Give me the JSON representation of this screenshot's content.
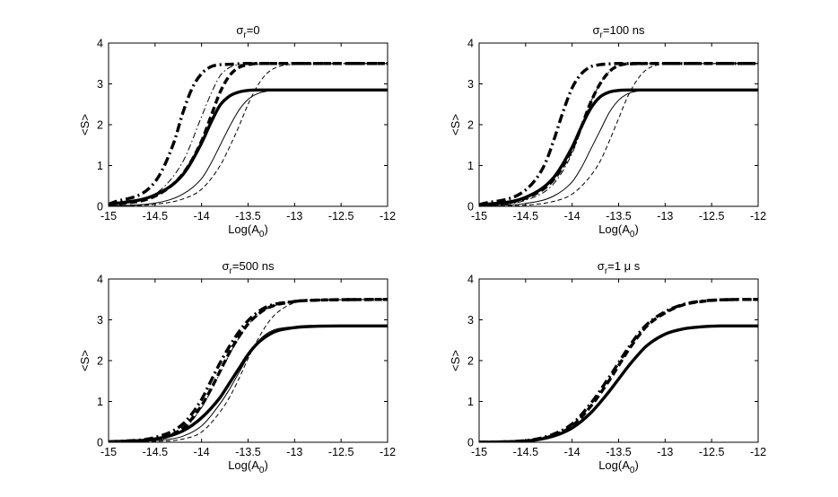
{
  "colors": {
    "axis": "#000000",
    "background": "#ffffff"
  },
  "chart_data": [
    {
      "type": "line",
      "title": {
        "sym": "σ",
        "sub": "r",
        "rest": "=0"
      },
      "xlabel": {
        "main": "Log(A",
        "sub": "0",
        "end": ")"
      },
      "ylabel": "<S>",
      "xlim": [
        -15,
        -12
      ],
      "ylim": [
        0,
        4
      ],
      "xticks": [
        "-15",
        "-14.5",
        "-14",
        "-13.5",
        "-13",
        "-12.5",
        "-12"
      ],
      "yticks": [
        "0",
        "1",
        "2",
        "3",
        "4"
      ],
      "grid": false,
      "series": [
        {
          "name": "thick solid",
          "style": "thick-solid",
          "x": [
            -15,
            -14.5,
            -14.2,
            -14.0,
            -13.9,
            -13.8,
            -13.7,
            -13.6,
            -13.5,
            -13.4,
            -13.2,
            -13.0,
            -12.0
          ],
          "y": [
            0.04,
            0.28,
            0.78,
            1.55,
            2.05,
            2.48,
            2.7,
            2.8,
            2.84,
            2.85,
            2.85,
            2.85,
            2.85
          ]
        },
        {
          "name": "thin solid",
          "style": "thin-solid",
          "x": [
            -15,
            -14.5,
            -14.2,
            -14.0,
            -13.9,
            -13.8,
            -13.7,
            -13.6,
            -13.5,
            -13.4,
            -13.3,
            -13.2,
            -13.0,
            -12.0
          ],
          "y": [
            0.01,
            0.08,
            0.3,
            0.68,
            1.05,
            1.5,
            1.95,
            2.35,
            2.62,
            2.76,
            2.82,
            2.84,
            2.85,
            2.85
          ]
        },
        {
          "name": "thick dash-dot",
          "style": "thick-dashdot",
          "x": [
            -15,
            -14.5,
            -14.3,
            -14.2,
            -14.1,
            -14.0,
            -13.9,
            -13.8,
            -13.7,
            -13.5,
            -13.0,
            -12.0
          ],
          "y": [
            0.05,
            0.6,
            1.55,
            2.3,
            2.9,
            3.25,
            3.42,
            3.47,
            3.48,
            3.5,
            3.5,
            3.5
          ]
        },
        {
          "name": "thick dashed",
          "style": "thick-dashed",
          "x": [
            -15,
            -14.5,
            -14.2,
            -14.0,
            -13.9,
            -13.8,
            -13.7,
            -13.6,
            -13.5,
            -13.4,
            -13.0,
            -12.0
          ],
          "y": [
            0.03,
            0.25,
            0.8,
            1.6,
            2.2,
            2.8,
            3.2,
            3.4,
            3.47,
            3.5,
            3.5,
            3.5
          ]
        },
        {
          "name": "thin dash-dot",
          "style": "thin-dashdot",
          "x": [
            -15,
            -14.5,
            -14.2,
            -14.0,
            -13.9,
            -13.8,
            -13.7,
            -13.6,
            -13.5,
            -13.0,
            -12.0
          ],
          "y": [
            0.02,
            0.3,
            1.1,
            2.2,
            2.75,
            3.2,
            3.4,
            3.47,
            3.48,
            3.5,
            3.5
          ]
        },
        {
          "name": "thin dashed",
          "style": "thin-dashed",
          "x": [
            -15,
            -14.5,
            -14.2,
            -14.0,
            -13.8,
            -13.7,
            -13.6,
            -13.5,
            -13.4,
            -13.3,
            -13.2,
            -13.0,
            -12.0
          ],
          "y": [
            0.0,
            0.05,
            0.18,
            0.42,
            1.0,
            1.45,
            1.95,
            2.5,
            2.95,
            3.25,
            3.4,
            3.48,
            3.5
          ]
        }
      ]
    },
    {
      "type": "line",
      "title": {
        "sym": "σ",
        "sub": "r",
        "rest": "=100 ns"
      },
      "xlabel": {
        "main": "Log(A",
        "sub": "0",
        "end": ")"
      },
      "ylabel": "<S>",
      "xlim": [
        -15,
        -12
      ],
      "ylim": [
        0,
        4
      ],
      "xticks": [
        "-15",
        "-14.5",
        "-14",
        "-13.5",
        "-13",
        "-12.5",
        "-12"
      ],
      "yticks": [
        "0",
        "1",
        "2",
        "3",
        "4"
      ],
      "grid": false,
      "series": [
        {
          "name": "thick solid",
          "style": "thick-solid",
          "x": [
            -15,
            -14.5,
            -14.2,
            -14.0,
            -13.9,
            -13.8,
            -13.7,
            -13.6,
            -13.5,
            -13.4,
            -13.2,
            -13.0,
            -12.0
          ],
          "y": [
            0.03,
            0.22,
            0.7,
            1.45,
            1.95,
            2.4,
            2.68,
            2.8,
            2.84,
            2.85,
            2.85,
            2.85,
            2.85
          ]
        },
        {
          "name": "thin solid",
          "style": "thin-solid",
          "x": [
            -15,
            -14.5,
            -14.2,
            -14.0,
            -13.9,
            -13.8,
            -13.7,
            -13.6,
            -13.5,
            -13.4,
            -13.3,
            -13.2,
            -13.0,
            -12.0
          ],
          "y": [
            0.01,
            0.07,
            0.25,
            0.6,
            0.95,
            1.4,
            1.85,
            2.3,
            2.6,
            2.76,
            2.82,
            2.84,
            2.85,
            2.85
          ]
        },
        {
          "name": "thick dash-dot",
          "style": "thick-dashdot",
          "x": [
            -15,
            -14.5,
            -14.3,
            -14.2,
            -14.1,
            -14.0,
            -13.9,
            -13.8,
            -13.7,
            -13.6,
            -13.5,
            -13.0,
            -12.0
          ],
          "y": [
            0.04,
            0.4,
            1.0,
            1.6,
            2.3,
            2.9,
            3.25,
            3.42,
            3.47,
            3.49,
            3.5,
            3.5,
            3.5
          ]
        },
        {
          "name": "thick dashed",
          "style": "thick-dashed",
          "x": [
            -15,
            -14.5,
            -14.2,
            -14.0,
            -13.9,
            -13.8,
            -13.7,
            -13.6,
            -13.5,
            -13.4,
            -13.0,
            -12.0
          ],
          "y": [
            0.02,
            0.2,
            0.65,
            1.4,
            1.95,
            2.55,
            3.0,
            3.3,
            3.45,
            3.49,
            3.5,
            3.5
          ]
        },
        {
          "name": "thin dash-dot",
          "style": "thin-dashdot",
          "x": [
            -15,
            -14.5,
            -14.2,
            -14.0,
            -13.9,
            -13.8,
            -13.7,
            -13.6,
            -13.5,
            -13.4,
            -13.0,
            -12.0
          ],
          "y": [
            0.01,
            0.15,
            0.55,
            1.3,
            1.9,
            2.55,
            3.0,
            3.3,
            3.44,
            3.48,
            3.5,
            3.5
          ]
        },
        {
          "name": "thin dashed",
          "style": "thin-dashed",
          "x": [
            -15,
            -14.5,
            -14.2,
            -14.0,
            -13.8,
            -13.7,
            -13.6,
            -13.5,
            -13.4,
            -13.3,
            -13.2,
            -13.0,
            -12.0
          ],
          "y": [
            0.0,
            0.03,
            0.12,
            0.3,
            0.75,
            1.1,
            1.6,
            2.15,
            2.7,
            3.1,
            3.35,
            3.48,
            3.5
          ]
        }
      ]
    },
    {
      "type": "line",
      "title": {
        "sym": "σ",
        "sub": "r",
        "rest": "=500 ns"
      },
      "xlabel": {
        "main": "Log(A",
        "sub": "0",
        "end": ")"
      },
      "ylabel": "<S>",
      "xlim": [
        -15,
        -12
      ],
      "ylim": [
        0,
        4
      ],
      "xticks": [
        "-15",
        "-14.5",
        "-14",
        "-13.5",
        "-13",
        "-12.5",
        "-12"
      ],
      "yticks": [
        "0",
        "1",
        "2",
        "3",
        "4"
      ],
      "grid": false,
      "series": [
        {
          "name": "thick solid",
          "style": "thick-solid",
          "x": [
            -15,
            -14.5,
            -14.2,
            -14.0,
            -13.8,
            -13.7,
            -13.6,
            -13.5,
            -13.4,
            -13.3,
            -13.2,
            -13.0,
            -12.8,
            -12.5,
            -12.0
          ],
          "y": [
            0.01,
            0.08,
            0.28,
            0.6,
            1.1,
            1.45,
            1.8,
            2.15,
            2.42,
            2.6,
            2.72,
            2.81,
            2.84,
            2.85,
            2.85
          ]
        },
        {
          "name": "thin solid",
          "style": "thin-solid",
          "x": [
            -15,
            -14.5,
            -14.2,
            -14.0,
            -13.8,
            -13.7,
            -13.6,
            -13.5,
            -13.4,
            -13.3,
            -13.2,
            -13.0,
            -12.8,
            -12.0
          ],
          "y": [
            0.0,
            0.04,
            0.15,
            0.4,
            0.95,
            1.3,
            1.7,
            2.1,
            2.45,
            2.66,
            2.77,
            2.83,
            2.85,
            2.85
          ]
        },
        {
          "name": "thick dash-dot",
          "style": "thick-dashdot",
          "x": [
            -15,
            -14.5,
            -14.2,
            -14.0,
            -13.9,
            -13.8,
            -13.7,
            -13.6,
            -13.5,
            -13.4,
            -13.3,
            -13.0,
            -12.8,
            -12.0
          ],
          "y": [
            0.01,
            0.12,
            0.45,
            1.05,
            1.5,
            1.95,
            2.35,
            2.7,
            2.98,
            3.18,
            3.32,
            3.45,
            3.48,
            3.5
          ]
        },
        {
          "name": "thick dashed",
          "style": "thick-dashed",
          "x": [
            -15,
            -14.5,
            -14.2,
            -14.0,
            -13.9,
            -13.8,
            -13.7,
            -13.6,
            -13.5,
            -13.4,
            -13.3,
            -13.0,
            -12.8,
            -12.0
          ],
          "y": [
            0.01,
            0.08,
            0.35,
            0.9,
            1.3,
            1.75,
            2.2,
            2.58,
            2.9,
            3.12,
            3.28,
            3.45,
            3.48,
            3.5
          ]
        },
        {
          "name": "thin dash-dot",
          "style": "thin-dashdot",
          "x": [
            -15,
            -14.5,
            -14.2,
            -14.0,
            -13.9,
            -13.8,
            -13.7,
            -13.6,
            -13.5,
            -13.4,
            -13.3,
            -13.0,
            -12.8,
            -12.0
          ],
          "y": [
            0.0,
            0.06,
            0.3,
            0.85,
            1.25,
            1.7,
            2.15,
            2.55,
            2.88,
            3.1,
            3.27,
            3.45,
            3.48,
            3.5
          ]
        },
        {
          "name": "thin dashed",
          "style": "thin-dashed",
          "x": [
            -15,
            -14.5,
            -14.2,
            -14.0,
            -13.8,
            -13.7,
            -13.6,
            -13.5,
            -13.4,
            -13.3,
            -13.2,
            -13.0,
            -12.8,
            -12.0
          ],
          "y": [
            0.0,
            0.02,
            0.08,
            0.25,
            0.75,
            1.1,
            1.55,
            2.05,
            2.5,
            2.88,
            3.15,
            3.42,
            3.48,
            3.5
          ]
        }
      ]
    },
    {
      "type": "line",
      "title": {
        "sym": "σ",
        "sub": "r",
        "rest": "=1 μ s"
      },
      "xlabel": {
        "main": "Log(A",
        "sub": "0",
        "end": ")"
      },
      "ylabel": "<S>",
      "xlim": [
        -15,
        -12
      ],
      "ylim": [
        0,
        4
      ],
      "xticks": [
        "-15",
        "-14.5",
        "-14",
        "-13.5",
        "-13",
        "-12.5",
        "-12"
      ],
      "yticks": [
        "0",
        "1",
        "2",
        "3",
        "4"
      ],
      "grid": false,
      "series": [
        {
          "name": "thick solid",
          "style": "thick-solid",
          "x": [
            -15,
            -14.5,
            -14.2,
            -14.0,
            -13.8,
            -13.6,
            -13.5,
            -13.4,
            -13.3,
            -13.2,
            -13.0,
            -12.8,
            -12.6,
            -12.4,
            -12.0
          ],
          "y": [
            0.0,
            0.03,
            0.15,
            0.35,
            0.72,
            1.25,
            1.55,
            1.85,
            2.12,
            2.36,
            2.65,
            2.78,
            2.83,
            2.85,
            2.85
          ]
        },
        {
          "name": "thick dash-dot",
          "style": "thick-dashdot",
          "x": [
            -15,
            -14.5,
            -14.2,
            -14.0,
            -13.8,
            -13.6,
            -13.5,
            -13.4,
            -13.3,
            -13.2,
            -13.0,
            -12.8,
            -12.6,
            -12.4,
            -12.0
          ],
          "y": [
            0.0,
            0.04,
            0.2,
            0.45,
            0.95,
            1.6,
            1.95,
            2.3,
            2.62,
            2.88,
            3.2,
            3.38,
            3.46,
            3.49,
            3.5
          ]
        },
        {
          "name": "thick dashed",
          "style": "thick-dashed",
          "x": [
            -15,
            -14.5,
            -14.2,
            -14.0,
            -13.8,
            -13.6,
            -13.5,
            -13.4,
            -13.3,
            -13.2,
            -13.0,
            -12.8,
            -12.6,
            -12.4,
            -12.0
          ],
          "y": [
            0.0,
            0.03,
            0.17,
            0.4,
            0.88,
            1.52,
            1.88,
            2.24,
            2.56,
            2.84,
            3.17,
            3.37,
            3.45,
            3.49,
            3.5
          ]
        }
      ]
    }
  ]
}
